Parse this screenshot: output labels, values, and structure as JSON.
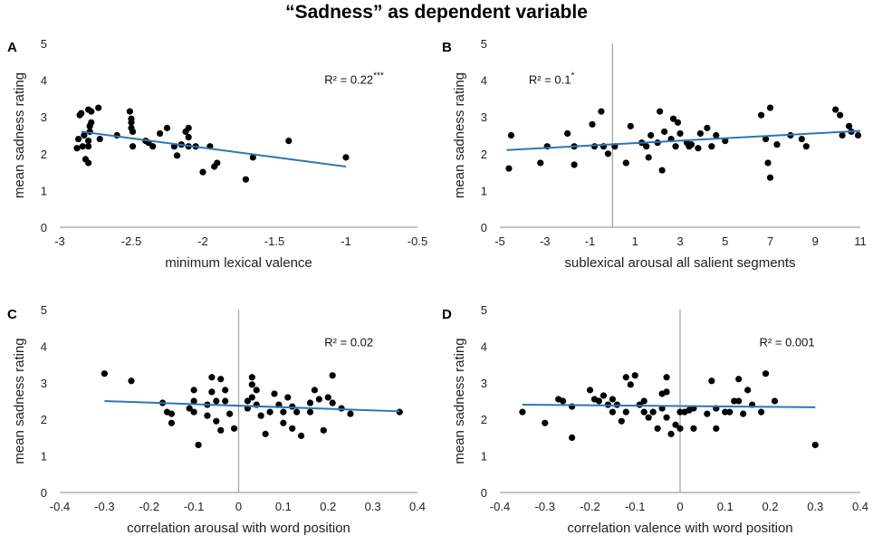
{
  "figure_title": "“Sadness” as dependent variable",
  "chart_data": [
    {
      "panel": "A",
      "type": "scatter",
      "xlabel": "minimum lexical valence",
      "ylabel": "mean sadness rating",
      "xlim": [
        -3,
        -0.5
      ],
      "ylim": [
        0,
        5
      ],
      "xticks": [
        -3,
        -2.5,
        -2,
        -1.5,
        -1,
        -0.5
      ],
      "xtick_labels": [
        "-3",
        "-2.5",
        "-2",
        "-1.5",
        "-1",
        "-0.5"
      ],
      "yticks": [
        0,
        1,
        2,
        3,
        4,
        5
      ],
      "ytick_labels": [
        "0",
        "1",
        "2",
        "3",
        "4",
        "5"
      ],
      "zero_line": null,
      "annotation": {
        "text": "R² = 0.22",
        "superscript": "***"
      },
      "trendline": {
        "x": [
          -2.85,
          -1.0
        ],
        "y": [
          2.6,
          1.65
        ]
      },
      "points": [
        {
          "x": -2.88,
          "y": 2.15
        },
        {
          "x": -2.87,
          "y": 2.4
        },
        {
          "x": -2.86,
          "y": 3.05
        },
        {
          "x": -2.85,
          "y": 3.1
        },
        {
          "x": -2.84,
          "y": 2.2
        },
        {
          "x": -2.83,
          "y": 2.5
        },
        {
          "x": -2.82,
          "y": 1.85
        },
        {
          "x": -2.8,
          "y": 1.75
        },
        {
          "x": -2.8,
          "y": 2.2
        },
        {
          "x": -2.8,
          "y": 2.35
        },
        {
          "x": -2.79,
          "y": 2.6
        },
        {
          "x": -2.79,
          "y": 2.75
        },
        {
          "x": -2.78,
          "y": 2.85
        },
        {
          "x": -2.78,
          "y": 3.15
        },
        {
          "x": -2.8,
          "y": 3.2
        },
        {
          "x": -2.73,
          "y": 3.25
        },
        {
          "x": -2.72,
          "y": 2.4
        },
        {
          "x": -2.6,
          "y": 2.5
        },
        {
          "x": -2.51,
          "y": 3.15
        },
        {
          "x": -2.5,
          "y": 2.95
        },
        {
          "x": -2.5,
          "y": 2.85
        },
        {
          "x": -2.5,
          "y": 2.7
        },
        {
          "x": -2.49,
          "y": 2.6
        },
        {
          "x": -2.49,
          "y": 2.2
        },
        {
          "x": -2.4,
          "y": 2.35
        },
        {
          "x": -2.38,
          "y": 2.3
        },
        {
          "x": -2.35,
          "y": 2.2
        },
        {
          "x": -2.3,
          "y": 2.55
        },
        {
          "x": -2.25,
          "y": 2.7
        },
        {
          "x": -2.2,
          "y": 2.2
        },
        {
          "x": -2.18,
          "y": 1.95
        },
        {
          "x": -2.15,
          "y": 2.25
        },
        {
          "x": -2.12,
          "y": 2.6
        },
        {
          "x": -2.1,
          "y": 2.7
        },
        {
          "x": -2.1,
          "y": 2.45
        },
        {
          "x": -2.1,
          "y": 2.2
        },
        {
          "x": -2.05,
          "y": 2.2
        },
        {
          "x": -2.0,
          "y": 1.5
        },
        {
          "x": -1.95,
          "y": 2.2
        },
        {
          "x": -1.92,
          "y": 1.65
        },
        {
          "x": -1.9,
          "y": 1.75
        },
        {
          "x": -1.7,
          "y": 1.3
        },
        {
          "x": -1.65,
          "y": 1.9
        },
        {
          "x": -1.4,
          "y": 2.35
        },
        {
          "x": -1.0,
          "y": 1.9
        }
      ]
    },
    {
      "panel": "B",
      "type": "scatter",
      "xlabel": "sublexical arousal all salient segments",
      "ylabel": "mean sadness rating",
      "xlim": [
        -5,
        11
      ],
      "ylim": [
        0,
        5
      ],
      "xticks": [
        -5,
        -3,
        -1,
        1,
        3,
        5,
        7,
        9,
        11
      ],
      "xtick_labels": [
        "-5",
        "-3",
        "-1",
        "1",
        "3",
        "5",
        "7",
        "9",
        "11"
      ],
      "yticks": [
        0,
        1,
        2,
        3,
        4,
        5
      ],
      "ytick_labels": [
        "0",
        "1",
        "2",
        "3",
        "4",
        "5"
      ],
      "zero_line": {
        "axis": "x",
        "value": 0
      },
      "annotation": {
        "text": "R² = 0.1",
        "superscript": "*"
      },
      "trendline": {
        "x": [
          -4.7,
          11.0
        ],
        "y": [
          2.1,
          2.62
        ]
      },
      "points": [
        {
          "x": -4.6,
          "y": 1.6
        },
        {
          "x": -4.5,
          "y": 2.5
        },
        {
          "x": -3.2,
          "y": 1.75
        },
        {
          "x": -2.9,
          "y": 2.2
        },
        {
          "x": -2.0,
          "y": 2.55
        },
        {
          "x": -1.7,
          "y": 1.7
        },
        {
          "x": -1.7,
          "y": 2.2
        },
        {
          "x": -0.9,
          "y": 2.8
        },
        {
          "x": -0.8,
          "y": 2.2
        },
        {
          "x": -0.5,
          "y": 3.15
        },
        {
          "x": -0.4,
          "y": 2.2
        },
        {
          "x": -0.2,
          "y": 2.0
        },
        {
          "x": 0.1,
          "y": 2.2
        },
        {
          "x": 0.6,
          "y": 1.75
        },
        {
          "x": 0.8,
          "y": 2.75
        },
        {
          "x": 1.3,
          "y": 2.3
        },
        {
          "x": 1.5,
          "y": 2.2
        },
        {
          "x": 1.6,
          "y": 1.9
        },
        {
          "x": 1.7,
          "y": 2.5
        },
        {
          "x": 2.0,
          "y": 2.3
        },
        {
          "x": 2.1,
          "y": 3.15
        },
        {
          "x": 2.2,
          "y": 1.55
        },
        {
          "x": 2.3,
          "y": 2.6
        },
        {
          "x": 2.6,
          "y": 2.4
        },
        {
          "x": 2.7,
          "y": 2.95
        },
        {
          "x": 2.8,
          "y": 2.2
        },
        {
          "x": 2.9,
          "y": 2.85
        },
        {
          "x": 3.0,
          "y": 2.55
        },
        {
          "x": 3.3,
          "y": 2.3
        },
        {
          "x": 3.4,
          "y": 2.2
        },
        {
          "x": 3.5,
          "y": 2.25
        },
        {
          "x": 3.8,
          "y": 2.15
        },
        {
          "x": 3.9,
          "y": 2.55
        },
        {
          "x": 4.2,
          "y": 2.7
        },
        {
          "x": 4.4,
          "y": 2.2
        },
        {
          "x": 4.6,
          "y": 2.5
        },
        {
          "x": 5.0,
          "y": 2.35
        },
        {
          "x": 6.6,
          "y": 3.05
        },
        {
          "x": 6.8,
          "y": 2.4
        },
        {
          "x": 6.9,
          "y": 1.75
        },
        {
          "x": 7.0,
          "y": 3.25
        },
        {
          "x": 7.0,
          "y": 1.35
        },
        {
          "x": 7.3,
          "y": 2.25
        },
        {
          "x": 7.9,
          "y": 2.5
        },
        {
          "x": 8.4,
          "y": 2.4
        },
        {
          "x": 8.6,
          "y": 2.2
        },
        {
          "x": 9.9,
          "y": 3.2
        },
        {
          "x": 10.1,
          "y": 3.05
        },
        {
          "x": 10.2,
          "y": 2.5
        },
        {
          "x": 10.5,
          "y": 2.75
        },
        {
          "x": 10.6,
          "y": 2.6
        },
        {
          "x": 10.9,
          "y": 2.5
        }
      ]
    },
    {
      "panel": "C",
      "type": "scatter",
      "xlabel": "correlation arousal with word position",
      "ylabel": "mean sadness rating",
      "xlim": [
        -0.4,
        0.4
      ],
      "ylim": [
        0,
        5
      ],
      "xticks": [
        -0.4,
        -0.3,
        -0.2,
        -0.1,
        0,
        0.1,
        0.2,
        0.3,
        0.4
      ],
      "xtick_labels": [
        "-0.4",
        "-0.3",
        "-0.2",
        "-0.1",
        "0",
        "0.1",
        "0.2",
        "0.3",
        "0.4"
      ],
      "yticks": [
        0,
        1,
        2,
        3,
        4,
        5
      ],
      "ytick_labels": [
        "0",
        "1",
        "2",
        "3",
        "4",
        "5"
      ],
      "zero_line": {
        "axis": "x",
        "value": 0
      },
      "annotation": {
        "text": "R² = 0.02",
        "superscript": ""
      },
      "trendline": {
        "x": [
          -0.3,
          0.36
        ],
        "y": [
          2.5,
          2.22
        ]
      },
      "points": [
        {
          "x": -0.3,
          "y": 3.25
        },
        {
          "x": -0.24,
          "y": 3.05
        },
        {
          "x": -0.17,
          "y": 2.45
        },
        {
          "x": -0.16,
          "y": 2.2
        },
        {
          "x": -0.15,
          "y": 2.15
        },
        {
          "x": -0.15,
          "y": 1.9
        },
        {
          "x": -0.11,
          "y": 2.3
        },
        {
          "x": -0.1,
          "y": 2.8
        },
        {
          "x": -0.1,
          "y": 2.5
        },
        {
          "x": -0.1,
          "y": 2.2
        },
        {
          "x": -0.09,
          "y": 1.3
        },
        {
          "x": -0.07,
          "y": 2.4
        },
        {
          "x": -0.07,
          "y": 2.1
        },
        {
          "x": -0.06,
          "y": 3.15
        },
        {
          "x": -0.06,
          "y": 2.75
        },
        {
          "x": -0.05,
          "y": 2.5
        },
        {
          "x": -0.05,
          "y": 1.95
        },
        {
          "x": -0.04,
          "y": 3.1
        },
        {
          "x": -0.04,
          "y": 1.7
        },
        {
          "x": -0.03,
          "y": 2.8
        },
        {
          "x": -0.03,
          "y": 2.5
        },
        {
          "x": -0.02,
          "y": 2.15
        },
        {
          "x": -0.01,
          "y": 1.75
        },
        {
          "x": 0.02,
          "y": 2.5
        },
        {
          "x": 0.02,
          "y": 2.3
        },
        {
          "x": 0.03,
          "y": 3.15
        },
        {
          "x": 0.03,
          "y": 2.95
        },
        {
          "x": 0.03,
          "y": 2.6
        },
        {
          "x": 0.04,
          "y": 2.8
        },
        {
          "x": 0.04,
          "y": 2.4
        },
        {
          "x": 0.05,
          "y": 2.1
        },
        {
          "x": 0.06,
          "y": 1.6
        },
        {
          "x": 0.07,
          "y": 2.2
        },
        {
          "x": 0.08,
          "y": 2.7
        },
        {
          "x": 0.09,
          "y": 2.4
        },
        {
          "x": 0.1,
          "y": 2.2
        },
        {
          "x": 0.1,
          "y": 1.9
        },
        {
          "x": 0.11,
          "y": 2.6
        },
        {
          "x": 0.12,
          "y": 2.35
        },
        {
          "x": 0.12,
          "y": 1.75
        },
        {
          "x": 0.13,
          "y": 2.2
        },
        {
          "x": 0.14,
          "y": 1.55
        },
        {
          "x": 0.16,
          "y": 2.2
        },
        {
          "x": 0.16,
          "y": 2.45
        },
        {
          "x": 0.17,
          "y": 2.8
        },
        {
          "x": 0.18,
          "y": 2.55
        },
        {
          "x": 0.19,
          "y": 1.7
        },
        {
          "x": 0.2,
          "y": 2.6
        },
        {
          "x": 0.21,
          "y": 2.45
        },
        {
          "x": 0.21,
          "y": 3.2
        },
        {
          "x": 0.23,
          "y": 2.3
        },
        {
          "x": 0.25,
          "y": 2.15
        },
        {
          "x": 0.36,
          "y": 2.2
        }
      ]
    },
    {
      "panel": "D",
      "type": "scatter",
      "xlabel": "correlation valence with word position",
      "ylabel": "mean sadness rating",
      "xlim": [
        -0.4,
        0.4
      ],
      "ylim": [
        0,
        5
      ],
      "xticks": [
        -0.4,
        -0.3,
        -0.2,
        -0.1,
        0,
        0.1,
        0.2,
        0.3,
        0.4
      ],
      "xtick_labels": [
        "-0.4",
        "-0.3",
        "-0.2",
        "-0.1",
        "0",
        "0.1",
        "0.2",
        "0.3",
        "0.4"
      ],
      "yticks": [
        0,
        1,
        2,
        3,
        4,
        5
      ],
      "ytick_labels": [
        "0",
        "1",
        "2",
        "3",
        "4",
        "5"
      ],
      "zero_line": {
        "axis": "x",
        "value": 0
      },
      "annotation": {
        "text": "R² = 0.001",
        "superscript": ""
      },
      "trendline": {
        "x": [
          -0.35,
          0.3
        ],
        "y": [
          2.4,
          2.33
        ]
      },
      "points": [
        {
          "x": -0.35,
          "y": 2.2
        },
        {
          "x": -0.3,
          "y": 1.9
        },
        {
          "x": -0.27,
          "y": 2.55
        },
        {
          "x": -0.26,
          "y": 2.5
        },
        {
          "x": -0.24,
          "y": 1.5
        },
        {
          "x": -0.24,
          "y": 2.35
        },
        {
          "x": -0.2,
          "y": 2.8
        },
        {
          "x": -0.19,
          "y": 2.55
        },
        {
          "x": -0.18,
          "y": 2.5
        },
        {
          "x": -0.17,
          "y": 2.65
        },
        {
          "x": -0.16,
          "y": 2.4
        },
        {
          "x": -0.15,
          "y": 2.2
        },
        {
          "x": -0.15,
          "y": 2.55
        },
        {
          "x": -0.14,
          "y": 2.4
        },
        {
          "x": -0.13,
          "y": 1.95
        },
        {
          "x": -0.12,
          "y": 2.2
        },
        {
          "x": -0.12,
          "y": 3.15
        },
        {
          "x": -0.11,
          "y": 2.95
        },
        {
          "x": -0.1,
          "y": 3.2
        },
        {
          "x": -0.09,
          "y": 2.4
        },
        {
          "x": -0.08,
          "y": 2.5
        },
        {
          "x": -0.08,
          "y": 2.2
        },
        {
          "x": -0.07,
          "y": 2.05
        },
        {
          "x": -0.06,
          "y": 2.2
        },
        {
          "x": -0.05,
          "y": 1.75
        },
        {
          "x": -0.04,
          "y": 2.3
        },
        {
          "x": -0.04,
          "y": 2.7
        },
        {
          "x": -0.03,
          "y": 3.15
        },
        {
          "x": -0.03,
          "y": 2.75
        },
        {
          "x": -0.03,
          "y": 2.05
        },
        {
          "x": -0.02,
          "y": 1.6
        },
        {
          "x": -0.01,
          "y": 1.85
        },
        {
          "x": 0.0,
          "y": 1.75
        },
        {
          "x": 0.0,
          "y": 2.2
        },
        {
          "x": 0.01,
          "y": 2.2
        },
        {
          "x": 0.02,
          "y": 2.25
        },
        {
          "x": 0.03,
          "y": 1.75
        },
        {
          "x": 0.03,
          "y": 2.3
        },
        {
          "x": 0.06,
          "y": 2.15
        },
        {
          "x": 0.07,
          "y": 3.05
        },
        {
          "x": 0.08,
          "y": 1.75
        },
        {
          "x": 0.08,
          "y": 2.3
        },
        {
          "x": 0.1,
          "y": 2.2
        },
        {
          "x": 0.11,
          "y": 2.2
        },
        {
          "x": 0.12,
          "y": 2.5
        },
        {
          "x": 0.13,
          "y": 2.5
        },
        {
          "x": 0.13,
          "y": 3.1
        },
        {
          "x": 0.14,
          "y": 2.15
        },
        {
          "x": 0.15,
          "y": 2.8
        },
        {
          "x": 0.16,
          "y": 2.4
        },
        {
          "x": 0.18,
          "y": 2.2
        },
        {
          "x": 0.19,
          "y": 3.25
        },
        {
          "x": 0.21,
          "y": 2.5
        },
        {
          "x": 0.3,
          "y": 1.3
        }
      ]
    }
  ],
  "colors": {
    "trendline": "#2E75B6",
    "points": "#000000",
    "zero_line": "#A6A6A6",
    "axis": "#888888",
    "text": "#222222"
  }
}
